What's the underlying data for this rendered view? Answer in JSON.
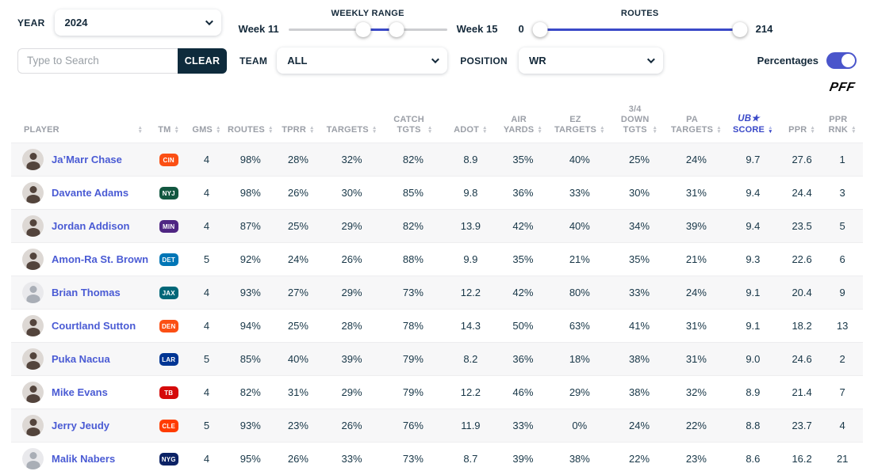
{
  "filters": {
    "year": {
      "label": "YEAR",
      "value": "2024"
    },
    "weekly_range": {
      "title": "WEEKLY RANGE",
      "start": "Week 11",
      "end": "Week 15"
    },
    "routes_range": {
      "title": "ROUTES",
      "min": "0",
      "max": "214"
    },
    "search": {
      "placeholder": "Type to Search",
      "clear": "CLEAR"
    },
    "team": {
      "label": "TEAM",
      "value": "ALL"
    },
    "position": {
      "label": "POSITION",
      "value": "WR"
    },
    "percentages": {
      "label": "Percentages",
      "on": true
    }
  },
  "brand": {
    "logo": "PFF"
  },
  "colors": {
    "accent": "#3a49c8",
    "toggle": "#4a55cb",
    "player_link": "#4a5bd4",
    "text_dark": "#173647",
    "header_gray": "#9b9fa7",
    "clear_button_bg": "#0e2b3c",
    "row_alt_bg": "#f7f7f8"
  },
  "table": {
    "columns": [
      {
        "key": "player",
        "lines": [
          "PLAYER"
        ]
      },
      {
        "key": "tm",
        "lines": [
          "TM"
        ]
      },
      {
        "key": "gms",
        "lines": [
          "GMS"
        ]
      },
      {
        "key": "routes",
        "lines": [
          "ROUTES"
        ]
      },
      {
        "key": "tprr",
        "lines": [
          "TPRR"
        ]
      },
      {
        "key": "targets",
        "lines": [
          "TARGETS"
        ]
      },
      {
        "key": "catch_tgts",
        "lines": [
          "CATCH",
          "TGTS"
        ]
      },
      {
        "key": "adot",
        "lines": [
          "ADOT"
        ]
      },
      {
        "key": "air_yards",
        "lines": [
          "AIR",
          "YARDS"
        ]
      },
      {
        "key": "ez_targets",
        "lines": [
          "EZ",
          "TARGETS"
        ]
      },
      {
        "key": "down_tgts",
        "lines": [
          "3/4",
          "DOWN",
          "TGTS"
        ]
      },
      {
        "key": "pa_targets",
        "lines": [
          "PA",
          "TARGETS"
        ]
      },
      {
        "key": "ub_score",
        "lines": [
          "UB★",
          "SCORE"
        ],
        "active_sort": "desc"
      },
      {
        "key": "ppr",
        "lines": [
          "PPR"
        ]
      },
      {
        "key": "ppr_rnk",
        "lines": [
          "PPR",
          "RNK"
        ]
      }
    ],
    "col_widths": [
      "16.4%",
      "4.2%",
      "4.7%",
      "5.6%",
      "5.6%",
      "7.0%",
      "7.4%",
      "6.1%",
      "6.2%",
      "7.1%",
      "6.9%",
      "6.5%",
      "6.8%",
      "4.7%",
      "4.8%"
    ],
    "rows": [
      {
        "player": "Ja’Marr Chase",
        "team": "CIN",
        "team_color": "#fb4f14",
        "avatar": "photo",
        "gms": "4",
        "routes": "98%",
        "tprr": "28%",
        "targets": "32%",
        "catch_tgts": "82%",
        "adot": "8.9",
        "air_yards": "35%",
        "ez_targets": "40%",
        "down_tgts": "25%",
        "pa_targets": "24%",
        "ub_score": "9.7",
        "ppr": "27.6",
        "ppr_rnk": "1"
      },
      {
        "player": "Davante Adams",
        "team": "NYJ",
        "team_color": "#125740",
        "avatar": "photo",
        "gms": "4",
        "routes": "98%",
        "tprr": "26%",
        "targets": "30%",
        "catch_tgts": "85%",
        "adot": "9.8",
        "air_yards": "36%",
        "ez_targets": "33%",
        "down_tgts": "30%",
        "pa_targets": "31%",
        "ub_score": "9.4",
        "ppr": "24.4",
        "ppr_rnk": "3"
      },
      {
        "player": "Jordan Addison",
        "team": "MIN",
        "team_color": "#4f2683",
        "avatar": "photo",
        "gms": "4",
        "routes": "87%",
        "tprr": "25%",
        "targets": "29%",
        "catch_tgts": "82%",
        "adot": "13.9",
        "air_yards": "42%",
        "ez_targets": "40%",
        "down_tgts": "34%",
        "pa_targets": "39%",
        "ub_score": "9.4",
        "ppr": "23.5",
        "ppr_rnk": "5"
      },
      {
        "player": "Amon-Ra St. Brown",
        "team": "DET",
        "team_color": "#0076b6",
        "avatar": "photo",
        "gms": "5",
        "routes": "92%",
        "tprr": "24%",
        "targets": "26%",
        "catch_tgts": "88%",
        "adot": "9.9",
        "air_yards": "35%",
        "ez_targets": "21%",
        "down_tgts": "35%",
        "pa_targets": "21%",
        "ub_score": "9.3",
        "ppr": "22.6",
        "ppr_rnk": "6"
      },
      {
        "player": "Brian Thomas",
        "team": "JAX",
        "team_color": "#006778",
        "avatar": "placeholder",
        "gms": "4",
        "routes": "93%",
        "tprr": "27%",
        "targets": "29%",
        "catch_tgts": "73%",
        "adot": "12.2",
        "air_yards": "42%",
        "ez_targets": "80%",
        "down_tgts": "33%",
        "pa_targets": "24%",
        "ub_score": "9.1",
        "ppr": "20.4",
        "ppr_rnk": "9"
      },
      {
        "player": "Courtland Sutton",
        "team": "DEN",
        "team_color": "#fb4f14",
        "avatar": "photo",
        "gms": "4",
        "routes": "94%",
        "tprr": "25%",
        "targets": "28%",
        "catch_tgts": "78%",
        "adot": "14.3",
        "air_yards": "50%",
        "ez_targets": "63%",
        "down_tgts": "41%",
        "pa_targets": "31%",
        "ub_score": "9.1",
        "ppr": "18.2",
        "ppr_rnk": "13"
      },
      {
        "player": "Puka Nacua",
        "team": "LAR",
        "team_color": "#003594",
        "avatar": "photo",
        "gms": "5",
        "routes": "85%",
        "tprr": "40%",
        "targets": "39%",
        "catch_tgts": "79%",
        "adot": "8.2",
        "air_yards": "36%",
        "ez_targets": "18%",
        "down_tgts": "38%",
        "pa_targets": "31%",
        "ub_score": "9.0",
        "ppr": "24.6",
        "ppr_rnk": "2"
      },
      {
        "player": "Mike Evans",
        "team": "TB",
        "team_color": "#d50a0a",
        "avatar": "photo",
        "gms": "4",
        "routes": "82%",
        "tprr": "31%",
        "targets": "29%",
        "catch_tgts": "79%",
        "adot": "12.2",
        "air_yards": "46%",
        "ez_targets": "29%",
        "down_tgts": "38%",
        "pa_targets": "32%",
        "ub_score": "8.9",
        "ppr": "21.4",
        "ppr_rnk": "7"
      },
      {
        "player": "Jerry Jeudy",
        "team": "CLE",
        "team_color": "#ff3c00",
        "avatar": "photo",
        "gms": "5",
        "routes": "93%",
        "tprr": "23%",
        "targets": "26%",
        "catch_tgts": "76%",
        "adot": "11.9",
        "air_yards": "33%",
        "ez_targets": "0%",
        "down_tgts": "24%",
        "pa_targets": "22%",
        "ub_score": "8.8",
        "ppr": "23.7",
        "ppr_rnk": "4"
      },
      {
        "player": "Malik Nabers",
        "team": "NYG",
        "team_color": "#0b2265",
        "avatar": "placeholder",
        "gms": "4",
        "routes": "95%",
        "tprr": "26%",
        "targets": "33%",
        "catch_tgts": "73%",
        "adot": "8.7",
        "air_yards": "39%",
        "ez_targets": "38%",
        "down_tgts": "22%",
        "pa_targets": "23%",
        "ub_score": "8.6",
        "ppr": "16.2",
        "ppr_rnk": "21"
      }
    ]
  }
}
